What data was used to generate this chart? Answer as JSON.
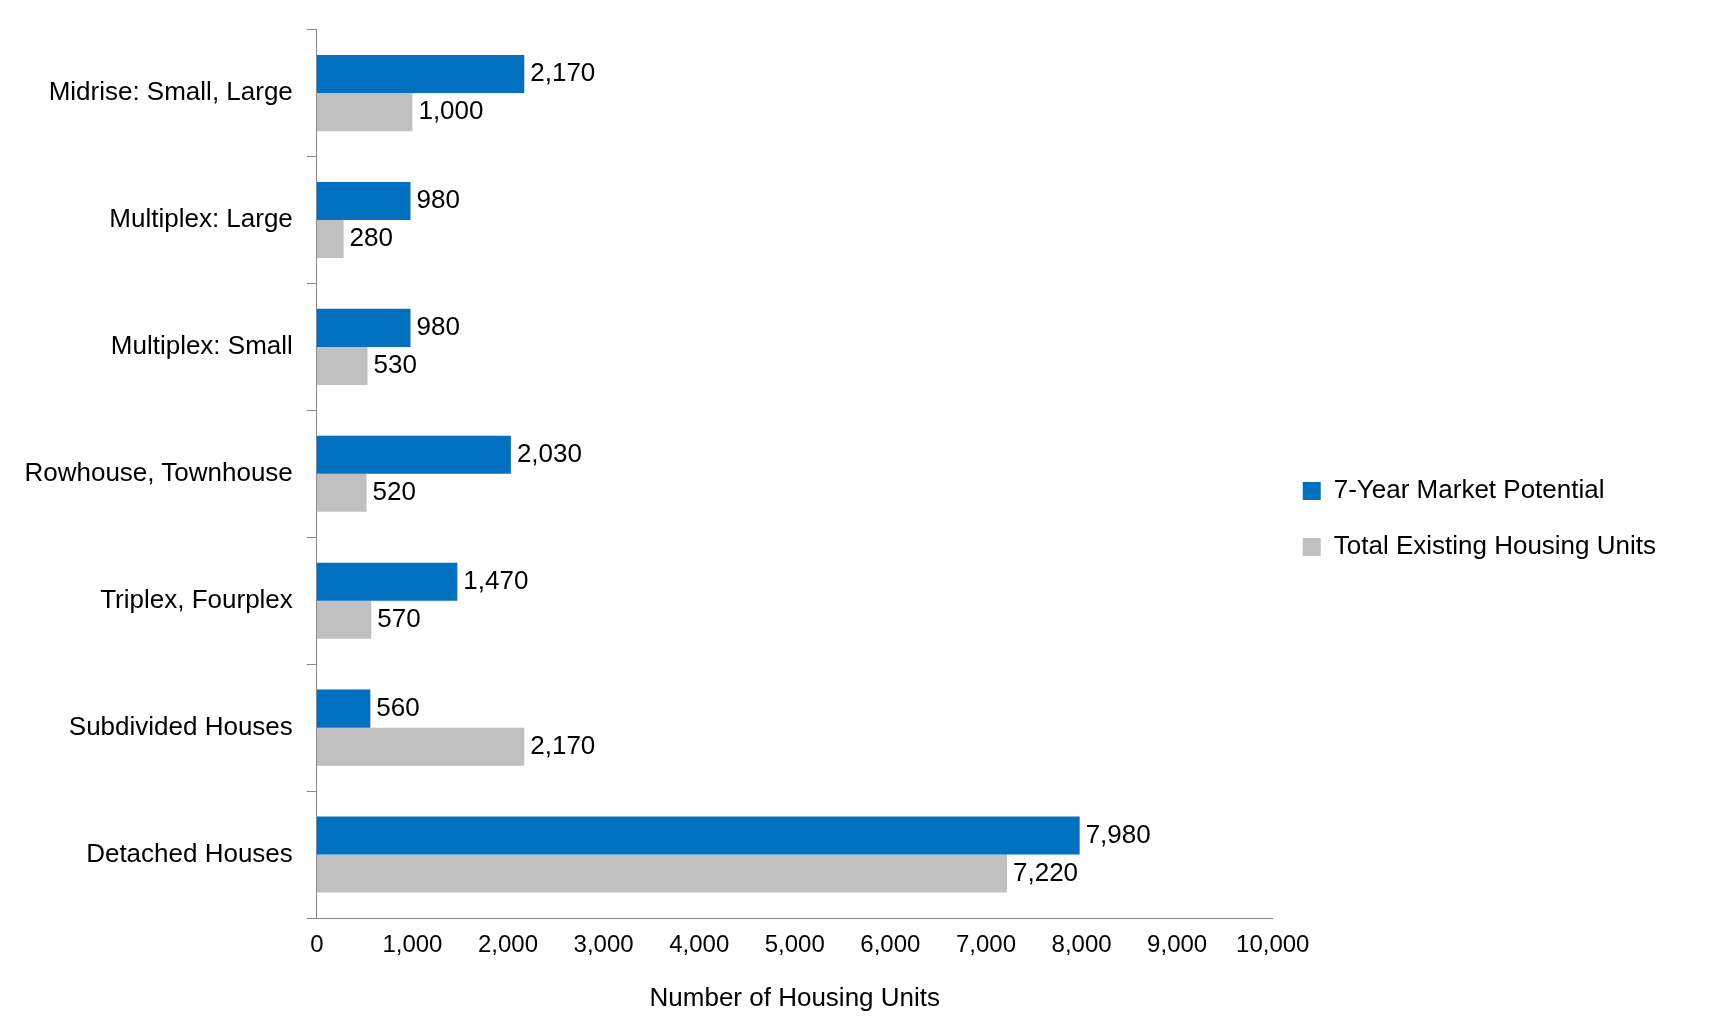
{
  "chart_data": {
    "type": "bar",
    "orientation": "horizontal",
    "xlabel": "Number of Housing Units",
    "categories": [
      "Midrise: Small, Large",
      "Multiplex: Large",
      "Multiplex: Small",
      "Rowhouse, Townhouse",
      "Triplex, Fourplex",
      "Subdivided Houses",
      "Detached Houses"
    ],
    "series": [
      {
        "name": "7-Year Market Potential",
        "color": "#0070c0",
        "values": [
          2170,
          980,
          980,
          2030,
          1470,
          560,
          7980
        ],
        "value_labels": [
          "2,170",
          "980",
          "980",
          "2,030",
          "1,470",
          "560",
          "7,980"
        ]
      },
      {
        "name": "Total Existing Housing Units",
        "color": "#c0c0c0",
        "values": [
          1000,
          280,
          530,
          520,
          570,
          2170,
          7220
        ],
        "value_labels": [
          "1,000",
          "280",
          "530",
          "520",
          "570",
          "2,170",
          "7,220"
        ]
      }
    ],
    "xlim": [
      0,
      10000
    ],
    "xticks": [
      0,
      {
        "value": 1000,
        "label": "1,000"
      },
      {
        "value": 2000,
        "label": "2,000"
      },
      {
        "value": 3000,
        "label": "3,000"
      },
      {
        "value": 4000,
        "label": "4,000"
      },
      {
        "value": 5000,
        "label": "5,000"
      },
      {
        "value": 6000,
        "label": "6,000"
      },
      {
        "value": 7000,
        "label": "7,000"
      },
      {
        "value": 8000,
        "label": "8,000"
      },
      {
        "value": 9000,
        "label": "9,000"
      },
      {
        "value": 10000,
        "label": "10,000"
      }
    ],
    "legend": "right",
    "grid": false
  }
}
